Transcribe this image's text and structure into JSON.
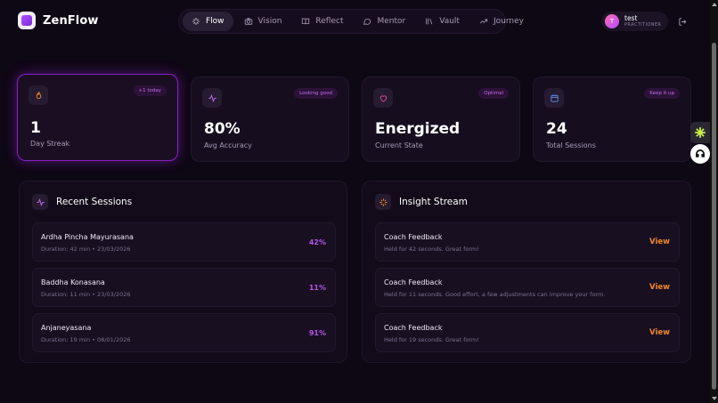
{
  "app": {
    "name": "ZenFlow"
  },
  "nav": [
    {
      "label": "Flow",
      "icon": "sparkles-icon",
      "active": true
    },
    {
      "label": "Vision",
      "icon": "camera-icon",
      "active": false
    },
    {
      "label": "Reflect",
      "icon": "book-icon",
      "active": false
    },
    {
      "label": "Mentor",
      "icon": "chat-icon",
      "active": false
    },
    {
      "label": "Vault",
      "icon": "library-icon",
      "active": false
    },
    {
      "label": "Journey",
      "icon": "trend-icon",
      "active": false
    }
  ],
  "user": {
    "initial": "T",
    "name": "test",
    "role": "PRACTITIONER"
  },
  "stats": [
    {
      "value": "1",
      "label": "Day Streak",
      "badge": "+1 today",
      "icon": "flame-icon"
    },
    {
      "value": "80%",
      "label": "Avg Accuracy",
      "badge": "Looking good",
      "icon": "pulse-icon"
    },
    {
      "value": "Energized",
      "label": "Current State",
      "badge": "Optimal",
      "icon": "heart-icon"
    },
    {
      "value": "24",
      "label": "Total Sessions",
      "badge": "Keep it up",
      "icon": "calendar-icon"
    }
  ],
  "recent": {
    "title": "Recent Sessions",
    "items": [
      {
        "name": "Ardha Pincha Mayurasana",
        "meta": "Duration: 42 min • 23/03/2026",
        "score": "42%"
      },
      {
        "name": "Baddha Konasana",
        "meta": "Duration: 11 min • 23/03/2026",
        "score": "11%"
      },
      {
        "name": "Anjaneyasana",
        "meta": "Duration: 19 min • 08/01/2026",
        "score": "91%"
      }
    ]
  },
  "insights": {
    "title": "Insight Stream",
    "action_label": "View",
    "items": [
      {
        "title": "Coach Feedback",
        "text": "Held for 42 seconds. Great form!"
      },
      {
        "title": "Coach Feedback",
        "text": "Held for 11 seconds. Good effort, a few adjustments can improve your form."
      },
      {
        "title": "Coach Feedback",
        "text": "Held for 19 seconds. Great form!"
      }
    ]
  },
  "colors": {
    "background": "#0e0714",
    "accent": "#b653ea",
    "action": "#f0892c",
    "highlight_border": "#8b1fc8"
  }
}
